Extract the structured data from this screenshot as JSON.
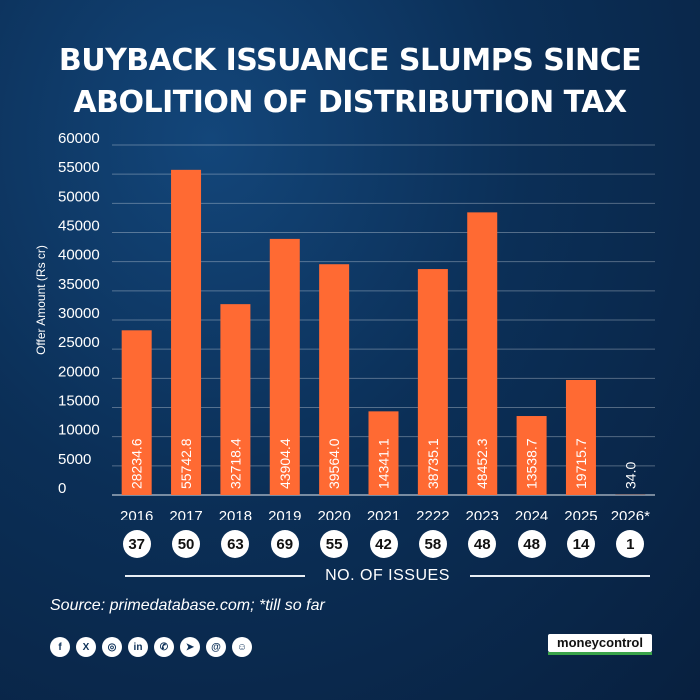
{
  "title_lines": [
    "BUYBACK ISSUANCE SLUMPS SINCE",
    "ABOLITION OF DISTRIBUTION TAX"
  ],
  "chart_data": {
    "type": "bar",
    "title": "BUYBACK ISSUANCE SLUMPS SINCE ABOLITION OF DISTRIBUTION TAX",
    "ylabel": "Offer Amount (Rs cr)",
    "ylim": [
      0,
      60000
    ],
    "yticks": [
      0,
      5000,
      10000,
      15000,
      20000,
      25000,
      30000,
      35000,
      40000,
      45000,
      50000,
      55000,
      60000
    ],
    "categories": [
      "2016",
      "2017",
      "2018",
      "2019",
      "2020",
      "2021",
      "2222",
      "2023",
      "2024",
      "2025",
      "2026*"
    ],
    "values": [
      28234.6,
      55742.8,
      32718.4,
      43904.4,
      39564.0,
      14341.1,
      38735.1,
      48452.3,
      13538.7,
      19715.7,
      34.0
    ],
    "value_labels": [
      "28234.6",
      "55742.8",
      "32718.4",
      "43904.4",
      "39564.0",
      "14341.1",
      "38735.1",
      "48452.3",
      "13538.7",
      "19715.7",
      "34.0"
    ],
    "grid": true,
    "bar_color": "#ff6a33",
    "issues": [
      "37",
      "50",
      "63",
      "69",
      "55",
      "42",
      "58",
      "48",
      "48",
      "14",
      "1"
    ],
    "issues_label": "NO. OF ISSUES"
  },
  "source": "Source: primedatabase.com; *till so far",
  "social_icons": [
    "facebook-icon",
    "x-icon",
    "instagram-icon",
    "linkedin-icon",
    "whatsapp-icon",
    "telegram-icon",
    "threads-icon",
    "snapchat-icon"
  ],
  "brand": "moneycontrol",
  "colors": {
    "background": "#0b2f57",
    "bar": "#ff6a33",
    "brand_green": "#3aa34a"
  }
}
